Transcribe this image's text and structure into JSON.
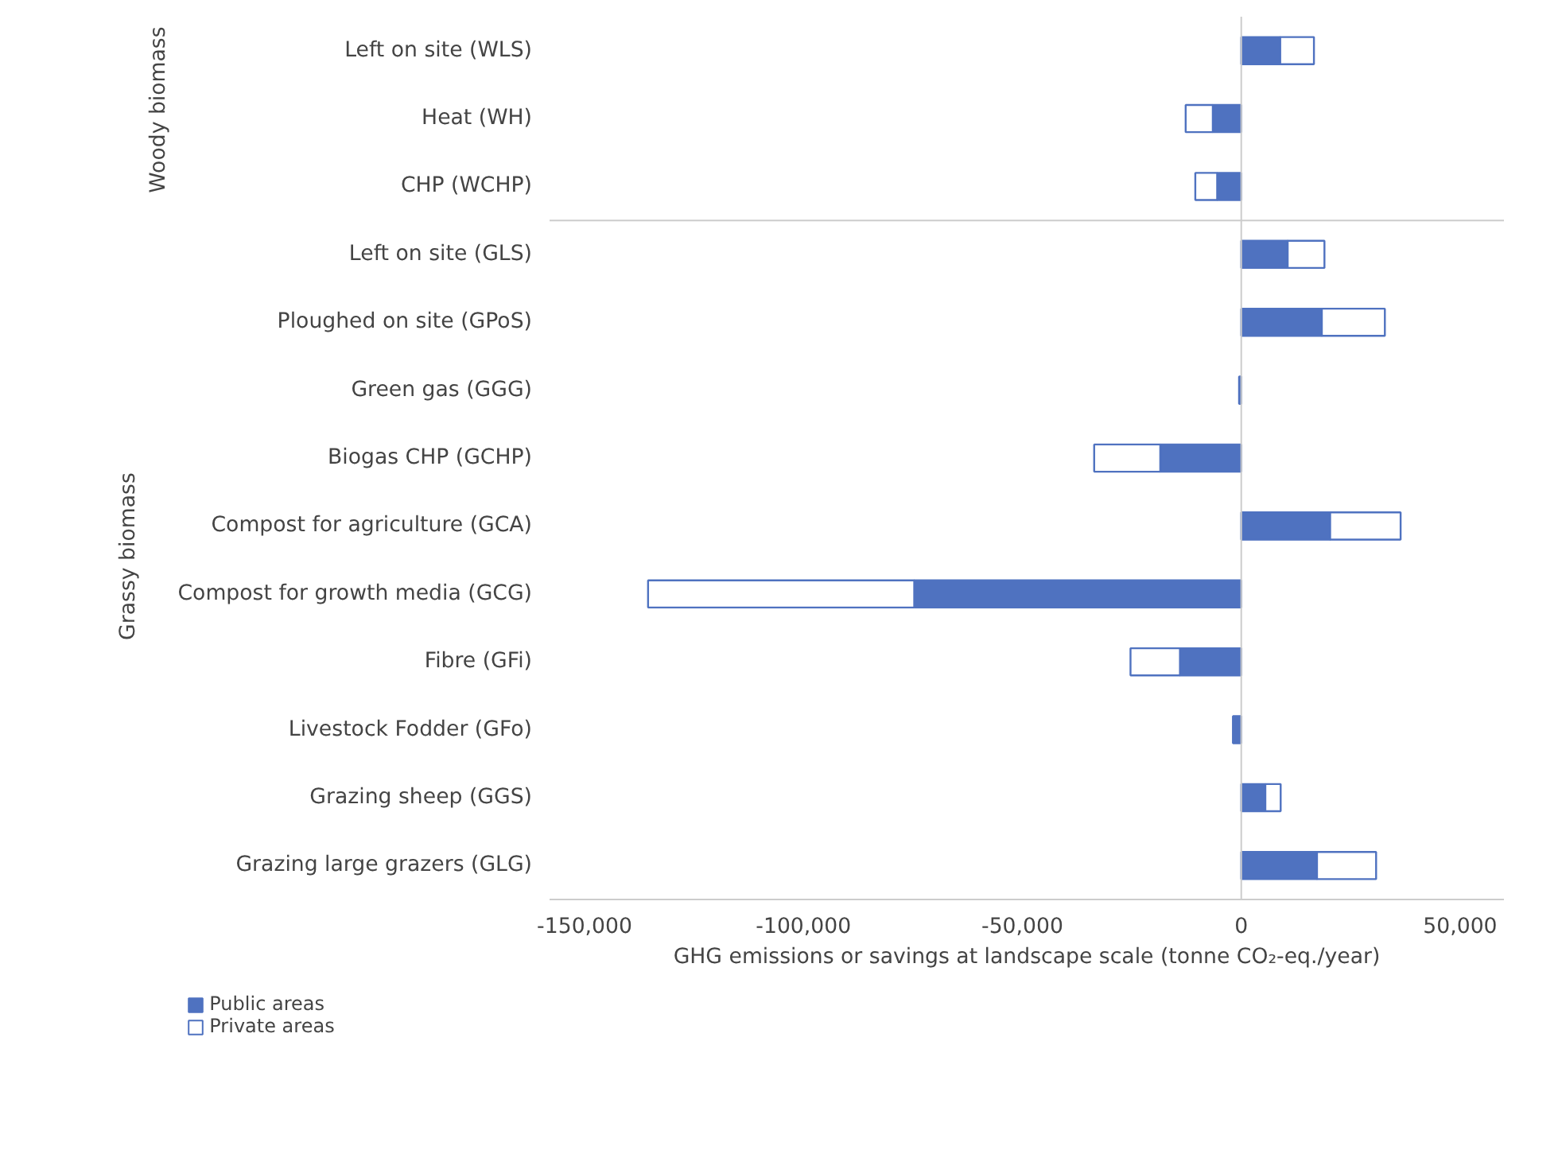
{
  "chart_data": {
    "type": "bar",
    "orientation": "horizontal",
    "stacked": true,
    "categories": [
      "Left on site (WLS)",
      "Heat (WH)",
      "CHP (WCHP)",
      "Left on site (GLS)",
      "Ploughed on site (GPoS)",
      "Green gas (GGG)",
      "Biogas CHP (GCHP)",
      "Compost for agriculture (GCA)",
      "Compost for growth media (GCG)",
      "Fibre (GFi)",
      "Livestock Fodder (GFo)",
      "Grazing sheep (GGS)",
      "Grazing large grazers (GLG)"
    ],
    "series": [
      {
        "name": "Public areas",
        "color": "#4f72c0",
        "values": [
          8900,
          -6500,
          -5500,
          10600,
          18400,
          -500,
          -18500,
          20300,
          -74700,
          -14000,
          -1900,
          5500,
          17300
        ]
      },
      {
        "name": "Private areas",
        "color": "#ffffff",
        "values": [
          7700,
          -6200,
          -5000,
          8400,
          14400,
          null,
          -15100,
          16100,
          -60800,
          -11300,
          null,
          3500,
          13500
        ]
      }
    ],
    "ref_lines": [
      {
        "axis": "x",
        "value": 0,
        "color": "#cccccc"
      }
    ],
    "xlim": [
      -158000,
      60000
    ],
    "xticks": [
      {
        "value": -150000,
        "label": "-150,000"
      },
      {
        "value": -100000,
        "label": "-100,000"
      },
      {
        "value": -50000,
        "label": "-50,000"
      },
      0,
      {
        "value": 50000,
        "label": "50,000"
      }
    ],
    "xlabel": "GHG emissions or savings at landscape scale (tonne CO₂-eq./year)",
    "annotations": [
      "Woody biomass",
      "Grassy biomass"
    ],
    "legend": "bottom left",
    "grid": false
  }
}
